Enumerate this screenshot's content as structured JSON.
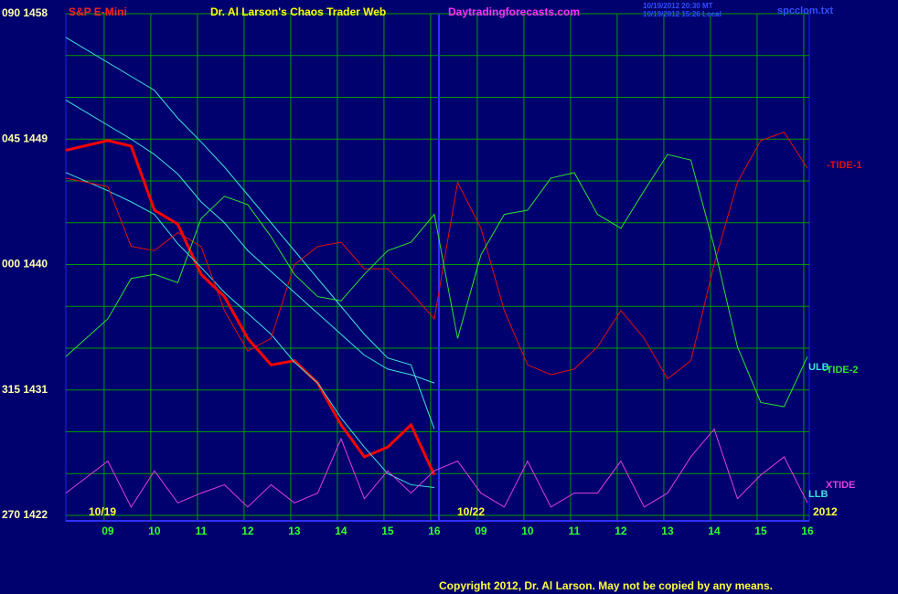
{
  "chart_data": {
    "type": "line",
    "header": {
      "symbol": "S&P E-Mini",
      "title": "Dr. Al Larson's Chaos Trader Web",
      "site": "Daytradingforecasts.com",
      "stamp_1": "10/19/2012 20:30 MT",
      "stamp_2": "10/19/2012 15:26 Local",
      "file": "spcclom.txt"
    },
    "date_labels": [
      "10/19",
      "10/22",
      "2012"
    ],
    "copyright": "Copyright 2012, Dr. Al Larson. May not be copied by any means.",
    "x": [
      -0.9,
      0,
      0.5,
      1,
      1.5,
      2,
      2.5,
      3,
      3.5,
      4,
      4.5,
      5,
      5.5,
      6,
      6.5,
      7,
      7.5,
      8,
      8.5,
      9,
      9.5,
      10,
      10.5,
      11,
      11.5,
      12,
      12.5,
      13,
      13.5,
      14,
      14.5,
      15
    ],
    "xlim": [
      -0.9,
      15.04
    ],
    "xticks": [
      {
        "value": 0,
        "label": "09"
      },
      {
        "value": 1,
        "label": "10"
      },
      {
        "value": 2,
        "label": "11"
      },
      {
        "value": 3,
        "label": "12"
      },
      {
        "value": 4,
        "label": "13"
      },
      {
        "value": 5,
        "label": "14"
      },
      {
        "value": 6,
        "label": "15"
      },
      {
        "value": 7,
        "label": "16"
      },
      {
        "value": 8,
        "label": "09"
      },
      {
        "value": 9,
        "label": "10"
      },
      {
        "value": 10,
        "label": "11"
      },
      {
        "value": 11,
        "label": "12"
      },
      {
        "value": 12,
        "label": "13"
      },
      {
        "value": 13,
        "label": "14"
      },
      {
        "value": 14,
        "label": "15"
      },
      {
        "value": 15,
        "label": "16"
      }
    ],
    "ylim": [
      1422,
      1458
    ],
    "yticks": [
      {
        "value": 1458,
        "label": "090 1458"
      },
      {
        "value": 1449,
        "label": "045 1449"
      },
      {
        "value": 1440,
        "label": "000 1440"
      },
      {
        "value": 1431,
        "label": "315 1431"
      },
      {
        "value": 1422,
        "label": "270 1422"
      }
    ],
    "ygrid": [
      1425,
      1428,
      1434,
      1437,
      1443,
      1446,
      1452,
      1455
    ],
    "grid": true,
    "series": [
      {
        "color": "#ff0000",
        "values": [
          1448.2,
          1448.9,
          1448.5,
          1443.9,
          1442.9,
          1439.3,
          1437.7,
          1434.7,
          1432.8,
          1433.1,
          1431.5,
          1428.5,
          1426.2,
          1426.9,
          1428.5,
          1424.9,
          null,
          null,
          null,
          null,
          null,
          null,
          null,
          null,
          null,
          null,
          null,
          null,
          null,
          null,
          null,
          null
        ]
      },
      {
        "color": "#40e0e0",
        "values": [
          1451.8,
          1450.0,
          1449.0,
          1447.9,
          1446.5,
          1444.5,
          1443.0,
          1441.0,
          1439.5,
          1438.0,
          1436.5,
          1435.0,
          1433.5,
          1432.5,
          1432.1,
          1431.5,
          null,
          null,
          null,
          null,
          null,
          null,
          null,
          null,
          null,
          null,
          null,
          null,
          null,
          null,
          null,
          null
        ]
      },
      {
        "name": "ULB",
        "color": "#40e0e0",
        "values": [
          1456.3,
          1454.5,
          1453.5,
          1452.5,
          1450.5,
          1448.8,
          1447.0,
          1445.0,
          1443.0,
          1441.0,
          1439.0,
          1437.0,
          1435.0,
          1433.3,
          1432.8,
          1428.2,
          null,
          null,
          null,
          null,
          null,
          null,
          null,
          null,
          null,
          null,
          null,
          null,
          null,
          null,
          null,
          null
        ]
      },
      {
        "name": "LLB",
        "color": "#40e0e0",
        "values": [
          1446.6,
          1445.3,
          1444.5,
          1443.6,
          1441.5,
          1439.8,
          1438.0,
          1436.5,
          1435.0,
          1433.0,
          1431.5,
          1429.0,
          1426.9,
          1425.0,
          1424.2,
          1424.0,
          null,
          null,
          null,
          null,
          null,
          null,
          null,
          null,
          null,
          null,
          null,
          null,
          null,
          null,
          null,
          null
        ]
      },
      {
        "name": "-TIDE-1",
        "color": "#e01010",
        "values": [
          1446.2,
          1445.6,
          1441.3,
          1441.0,
          1442.3,
          1441.3,
          1436.7,
          1433.8,
          1434.7,
          1440.0,
          1441.3,
          1441.6,
          1439.7,
          1439.7,
          1438.0,
          1436.1,
          1445.9,
          1442.6,
          1436.7,
          1432.8,
          1432.1,
          1432.5,
          1434.1,
          1436.7,
          1434.7,
          1431.8,
          1433.1,
          1440.0,
          1445.9,
          1448.9,
          1449.5,
          1446.9
        ]
      },
      {
        "name": "-TIDE-2",
        "color": "#30e030",
        "values": [
          1433.4,
          1436.1,
          1439.0,
          1439.3,
          1438.7,
          1443.3,
          1444.9,
          1444.3,
          1442.0,
          1439.3,
          1437.7,
          1437.4,
          1439.3,
          1441.0,
          1441.6,
          1443.6,
          1434.7,
          1440.7,
          1443.6,
          1443.9,
          1446.2,
          1446.6,
          1443.6,
          1442.6,
          1445.3,
          1447.9,
          1447.5,
          1441.3,
          1434.1,
          1430.1,
          1429.8,
          1433.4
        ]
      },
      {
        "name": "XTIDE",
        "color": "#e040e0",
        "values": [
          1423.6,
          1425.9,
          1422.6,
          1425.2,
          1422.9,
          1423.6,
          1424.2,
          1422.6,
          1424.2,
          1422.9,
          1423.6,
          1427.5,
          1423.2,
          1425.2,
          1423.6,
          1425.2,
          1425.9,
          1423.6,
          1422.6,
          1425.9,
          1422.6,
          1423.6,
          1423.6,
          1425.9,
          1422.6,
          1423.6,
          1426.2,
          1428.2,
          1423.2,
          1424.9,
          1426.2,
          1422.9
        ]
      }
    ]
  }
}
